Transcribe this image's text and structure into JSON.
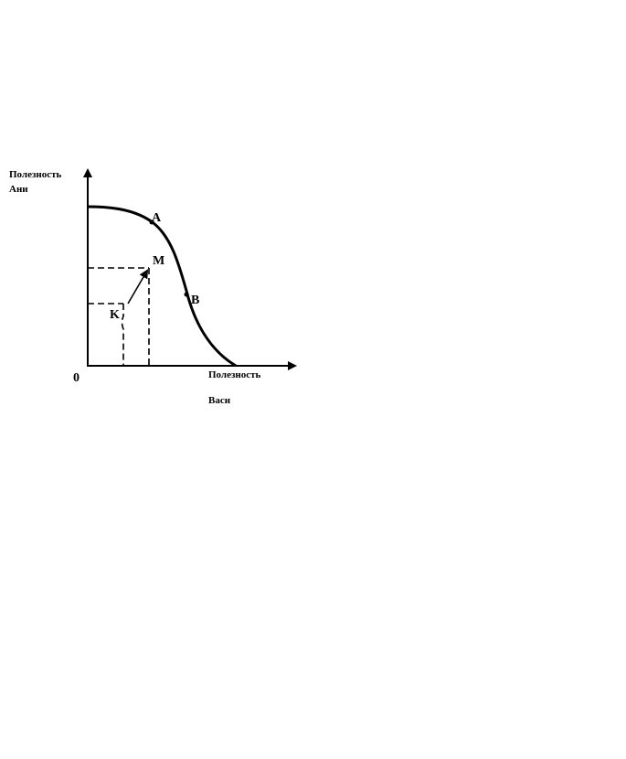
{
  "diagram": {
    "y_axis_label": [
      "Полезность",
      "Ани"
    ],
    "x_axis_label": [
      "Полезность",
      "Васи"
    ],
    "origin": "0",
    "points": {
      "A": "A",
      "B": "B",
      "M": "M",
      "K": "K"
    }
  }
}
